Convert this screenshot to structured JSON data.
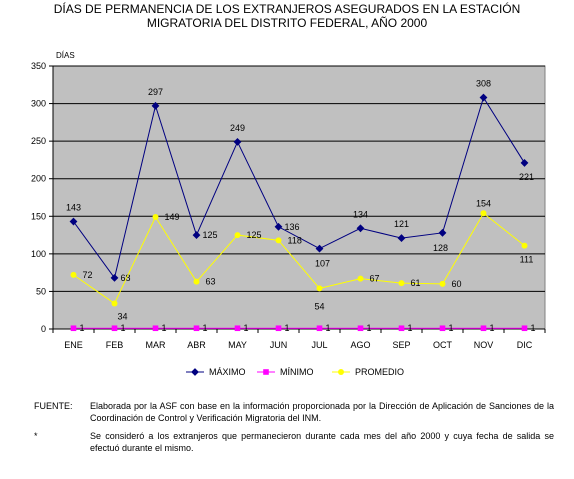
{
  "chart_data": {
    "type": "line",
    "title_lines": [
      "DÍAS DE PERMANENCIA DE LOS EXTRANJEROS ASEGURADOS EN LA ESTACIÓN",
      "MIGRATORIA  DEL DISTRITO FEDERAL, AÑO 2000"
    ],
    "ylabel": "DÍAS",
    "xlabel": "",
    "ylim": [
      0,
      350
    ],
    "yticks": [
      0,
      50,
      100,
      150,
      200,
      250,
      300,
      350
    ],
    "grid": true,
    "legend_position": "bottom",
    "categories": [
      "ENE",
      "FEB",
      "MAR",
      "ABR",
      "MAY",
      "JUN",
      "JUL",
      "AGO",
      "SEP",
      "OCT",
      "NOV",
      "DIC"
    ],
    "series": [
      {
        "name": "MÁXIMO",
        "color": "#000080",
        "marker": "diamond",
        "values": [
          143,
          68,
          297,
          125,
          249,
          136,
          107,
          134,
          121,
          128,
          308,
          221
        ]
      },
      {
        "name": "MÍNIMO",
        "color": "#ff00ff",
        "marker": "square",
        "values": [
          1,
          1,
          1,
          1,
          1,
          1,
          1,
          1,
          1,
          1,
          1,
          1
        ]
      },
      {
        "name": "PROMEDIO",
        "color": "#ffff00",
        "marker": "circle",
        "values": [
          72,
          34,
          149,
          63,
          125,
          118,
          54,
          67,
          61,
          60,
          154,
          111
        ]
      }
    ],
    "plot_background": "#c0c0c0"
  },
  "notes": [
    {
      "key": "FUENTE:",
      "text": "Elaborada por la ASF con base en la información proporcionada por la Dirección de Aplicación de Sanciones de la Coordinación de Control y Verificación Migratoria del INM."
    },
    {
      "key": "*",
      "text": "Se consideró a los extranjeros que permanecieron durante cada mes del año 2000 y cuya fecha de salida se efectuó durante el mismo."
    }
  ]
}
